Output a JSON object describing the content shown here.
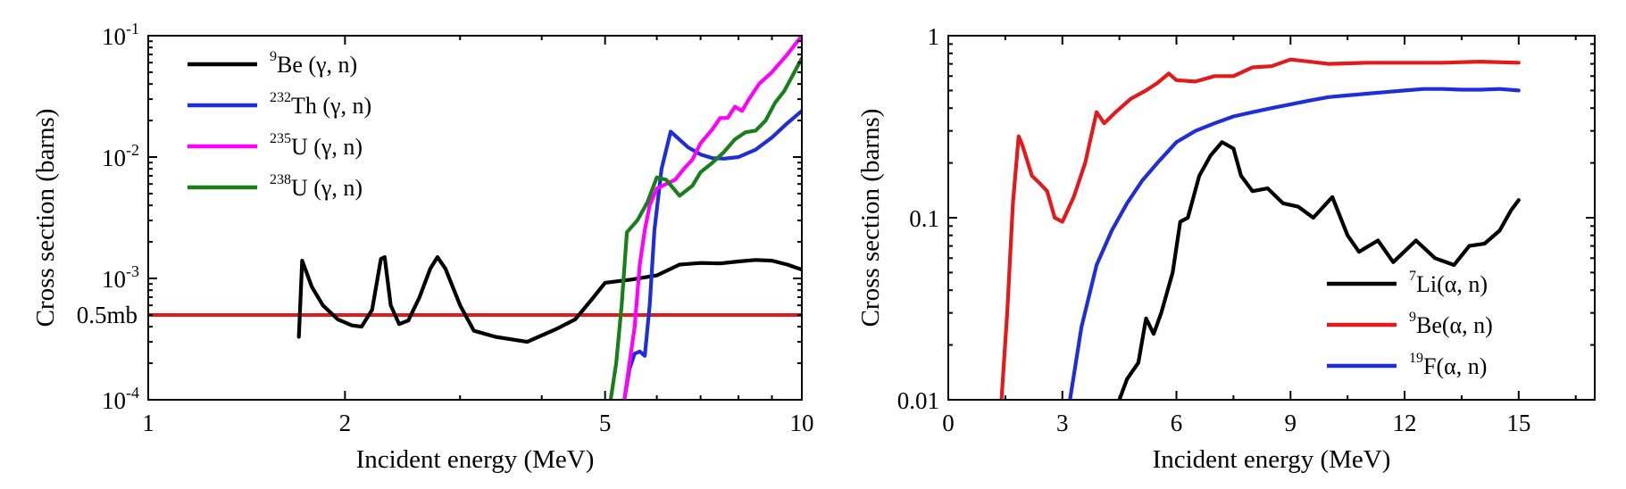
{
  "chart_data": [
    {
      "type": "line",
      "title": "",
      "xlabel": "Incident energy (MeV)",
      "ylabel": "Cross section (barns)",
      "xscale": "log",
      "yscale": "log",
      "xlim": [
        1,
        10
      ],
      "ylim": [
        0.0001,
        0.1
      ],
      "xticks": [
        {
          "value": 1,
          "label": "1"
        },
        {
          "value": 2,
          "label": "2"
        },
        {
          "value": 5,
          "label": "5"
        },
        {
          "value": 10,
          "label": "10"
        }
      ],
      "yticks": [
        {
          "value": 0.0001,
          "base": "10",
          "exp": "-4"
        },
        {
          "value": 0.001,
          "base": "10",
          "exp": "-3"
        },
        {
          "value": 0.01,
          "base": "10",
          "exp": "-2"
        },
        {
          "value": 0.1,
          "base": "10",
          "exp": "-1"
        }
      ],
      "annotation": {
        "label": "0.5mb",
        "y": 0.0005,
        "color": "#e31a1c"
      },
      "legend": {
        "position": "top-left"
      },
      "series": [
        {
          "mass": "9",
          "name": "Be (γ, n)",
          "color": "#000000",
          "points": [
            [
              1.7,
              0.00033
            ],
            [
              1.72,
              0.0014
            ],
            [
              1.78,
              0.00085
            ],
            [
              1.85,
              0.0006
            ],
            [
              1.95,
              0.00046
            ],
            [
              2.05,
              0.00041
            ],
            [
              2.12,
              0.0004
            ],
            [
              2.2,
              0.00055
            ],
            [
              2.27,
              0.00145
            ],
            [
              2.3,
              0.0015
            ],
            [
              2.35,
              0.0006
            ],
            [
              2.42,
              0.00042
            ],
            [
              2.5,
              0.00045
            ],
            [
              2.6,
              0.0007
            ],
            [
              2.7,
              0.0012
            ],
            [
              2.77,
              0.0015
            ],
            [
              2.85,
              0.0012
            ],
            [
              3.0,
              0.0006
            ],
            [
              3.15,
              0.00037
            ],
            [
              3.4,
              0.00033
            ],
            [
              3.8,
              0.0003
            ],
            [
              4.2,
              0.00038
            ],
            [
              4.5,
              0.00046
            ],
            [
              4.8,
              0.0007
            ],
            [
              5.0,
              0.00092
            ],
            [
              5.5,
              0.00098
            ],
            [
              6.0,
              0.00106
            ],
            [
              6.5,
              0.0013
            ],
            [
              7.0,
              0.00134
            ],
            [
              7.5,
              0.00133
            ],
            [
              8.0,
              0.00138
            ],
            [
              8.5,
              0.00142
            ],
            [
              9.0,
              0.0014
            ],
            [
              9.5,
              0.0013
            ],
            [
              10.0,
              0.00118
            ]
          ]
        },
        {
          "mass": "232",
          "name": "Th (γ, n)",
          "color": "#1f2fd6",
          "points": [
            [
              5.35,
              0.0001
            ],
            [
              5.45,
              0.00018
            ],
            [
              5.55,
              0.00024
            ],
            [
              5.65,
              0.00025
            ],
            [
              5.75,
              0.00023
            ],
            [
              5.85,
              0.0006
            ],
            [
              5.95,
              0.0025
            ],
            [
              6.1,
              0.008
            ],
            [
              6.3,
              0.0162
            ],
            [
              6.7,
              0.012
            ],
            [
              7.0,
              0.0105
            ],
            [
              7.3,
              0.0098
            ],
            [
              7.6,
              0.0097
            ],
            [
              8.0,
              0.01
            ],
            [
              8.5,
              0.0115
            ],
            [
              9.0,
              0.0145
            ],
            [
              9.5,
              0.019
            ],
            [
              10.0,
              0.024
            ]
          ]
        },
        {
          "mass": "235",
          "name": "U (γ, n)",
          "color": "#ff00ff",
          "points": [
            [
              5.35,
              0.0001
            ],
            [
              5.45,
              0.0002
            ],
            [
              5.55,
              0.0004
            ],
            [
              5.65,
              0.0013
            ],
            [
              5.75,
              0.0025
            ],
            [
              5.85,
              0.004
            ],
            [
              6.0,
              0.0055
            ],
            [
              6.2,
              0.006
            ],
            [
              6.4,
              0.0065
            ],
            [
              6.6,
              0.008
            ],
            [
              6.8,
              0.0095
            ],
            [
              7.0,
              0.013
            ],
            [
              7.3,
              0.017
            ],
            [
              7.5,
              0.021
            ],
            [
              7.7,
              0.021
            ],
            [
              7.9,
              0.026
            ],
            [
              8.1,
              0.024
            ],
            [
              8.3,
              0.03
            ],
            [
              8.6,
              0.04
            ],
            [
              9.0,
              0.05
            ],
            [
              9.5,
              0.07
            ],
            [
              10.0,
              0.1
            ]
          ]
        },
        {
          "mass": "238",
          "name": "U (γ, n)",
          "color": "#1a7f1a",
          "points": [
            [
              5.1,
              0.0001
            ],
            [
              5.2,
              0.0002
            ],
            [
              5.3,
              0.0006
            ],
            [
              5.4,
              0.0024
            ],
            [
              5.6,
              0.003
            ],
            [
              5.8,
              0.0042
            ],
            [
              6.0,
              0.0068
            ],
            [
              6.2,
              0.0065
            ],
            [
              6.5,
              0.0048
            ],
            [
              6.8,
              0.0058
            ],
            [
              7.0,
              0.0075
            ],
            [
              7.3,
              0.009
            ],
            [
              7.6,
              0.011
            ],
            [
              7.9,
              0.014
            ],
            [
              8.2,
              0.016
            ],
            [
              8.5,
              0.0165
            ],
            [
              8.8,
              0.02
            ],
            [
              9.1,
              0.028
            ],
            [
              9.4,
              0.035
            ],
            [
              9.7,
              0.048
            ],
            [
              10.0,
              0.065
            ]
          ]
        }
      ]
    },
    {
      "type": "line",
      "title": "",
      "xlabel": "Incident energy (MeV)",
      "ylabel": "Cross section (barns)",
      "xscale": "linear",
      "yscale": "log",
      "xlim": [
        0,
        17
      ],
      "ylim": [
        0.01,
        1
      ],
      "xticks": [
        {
          "value": 0,
          "label": "0"
        },
        {
          "value": 3,
          "label": "3"
        },
        {
          "value": 6,
          "label": "6"
        },
        {
          "value": 9,
          "label": "9"
        },
        {
          "value": 12,
          "label": "12"
        },
        {
          "value": 15,
          "label": "15"
        }
      ],
      "yticks": [
        {
          "value": 0.01,
          "label": "0.01"
        },
        {
          "value": 0.1,
          "label": "0.1"
        },
        {
          "value": 1,
          "label": "1"
        }
      ],
      "legend": {
        "position": "bottom-right"
      },
      "series": [
        {
          "mass": "7",
          "name": "Li(α, n)",
          "color": "#000000",
          "points": [
            [
              4.5,
              0.01
            ],
            [
              4.7,
              0.013
            ],
            [
              5.0,
              0.016
            ],
            [
              5.2,
              0.028
            ],
            [
              5.4,
              0.023
            ],
            [
              5.6,
              0.03
            ],
            [
              5.9,
              0.05
            ],
            [
              6.1,
              0.095
            ],
            [
              6.3,
              0.1
            ],
            [
              6.6,
              0.17
            ],
            [
              6.9,
              0.22
            ],
            [
              7.2,
              0.26
            ],
            [
              7.5,
              0.24
            ],
            [
              7.7,
              0.17
            ],
            [
              8.0,
              0.14
            ],
            [
              8.4,
              0.145
            ],
            [
              8.8,
              0.12
            ],
            [
              9.2,
              0.115
            ],
            [
              9.6,
              0.1
            ],
            [
              10.1,
              0.13
            ],
            [
              10.5,
              0.08
            ],
            [
              10.8,
              0.065
            ],
            [
              11.3,
              0.075
            ],
            [
              11.7,
              0.057
            ],
            [
              12.3,
              0.075
            ],
            [
              12.8,
              0.06
            ],
            [
              13.3,
              0.055
            ],
            [
              13.7,
              0.07
            ],
            [
              14.1,
              0.072
            ],
            [
              14.5,
              0.085
            ],
            [
              14.8,
              0.11
            ],
            [
              15.0,
              0.125
            ]
          ]
        },
        {
          "mass": "9",
          "name": "Be(α, n)",
          "color": "#e31a1c",
          "points": [
            [
              1.4,
              0.01
            ],
            [
              1.55,
              0.03
            ],
            [
              1.7,
              0.12
            ],
            [
              1.85,
              0.28
            ],
            [
              1.95,
              0.25
            ],
            [
              2.2,
              0.17
            ],
            [
              2.4,
              0.155
            ],
            [
              2.6,
              0.14
            ],
            [
              2.8,
              0.1
            ],
            [
              3.0,
              0.095
            ],
            [
              3.3,
              0.13
            ],
            [
              3.6,
              0.2
            ],
            [
              3.9,
              0.38
            ],
            [
              4.1,
              0.33
            ],
            [
              4.4,
              0.38
            ],
            [
              4.8,
              0.45
            ],
            [
              5.2,
              0.5
            ],
            [
              5.5,
              0.55
            ],
            [
              5.8,
              0.62
            ],
            [
              6.0,
              0.57
            ],
            [
              6.5,
              0.56
            ],
            [
              7.0,
              0.6
            ],
            [
              7.5,
              0.6
            ],
            [
              8.0,
              0.67
            ],
            [
              8.5,
              0.68
            ],
            [
              9.0,
              0.74
            ],
            [
              9.5,
              0.72
            ],
            [
              10.0,
              0.7
            ],
            [
              11.0,
              0.71
            ],
            [
              12.0,
              0.71
            ],
            [
              13.0,
              0.71
            ],
            [
              14.0,
              0.72
            ],
            [
              15.0,
              0.71
            ]
          ]
        },
        {
          "mass": "19",
          "name": "F(α, n)",
          "color": "#1f2fd6",
          "points": [
            [
              3.2,
              0.01
            ],
            [
              3.5,
              0.025
            ],
            [
              3.9,
              0.055
            ],
            [
              4.3,
              0.085
            ],
            [
              4.7,
              0.12
            ],
            [
              5.1,
              0.16
            ],
            [
              5.5,
              0.2
            ],
            [
              6.0,
              0.26
            ],
            [
              6.5,
              0.3
            ],
            [
              7.0,
              0.33
            ],
            [
              7.5,
              0.36
            ],
            [
              8.0,
              0.38
            ],
            [
              8.5,
              0.4
            ],
            [
              9.0,
              0.42
            ],
            [
              9.5,
              0.44
            ],
            [
              10.0,
              0.46
            ],
            [
              10.5,
              0.47
            ],
            [
              11.0,
              0.48
            ],
            [
              11.5,
              0.49
            ],
            [
              12.0,
              0.5
            ],
            [
              12.5,
              0.51
            ],
            [
              13.0,
              0.51
            ],
            [
              13.5,
              0.505
            ],
            [
              14.0,
              0.505
            ],
            [
              14.5,
              0.51
            ],
            [
              15.0,
              0.5
            ]
          ]
        }
      ]
    }
  ]
}
